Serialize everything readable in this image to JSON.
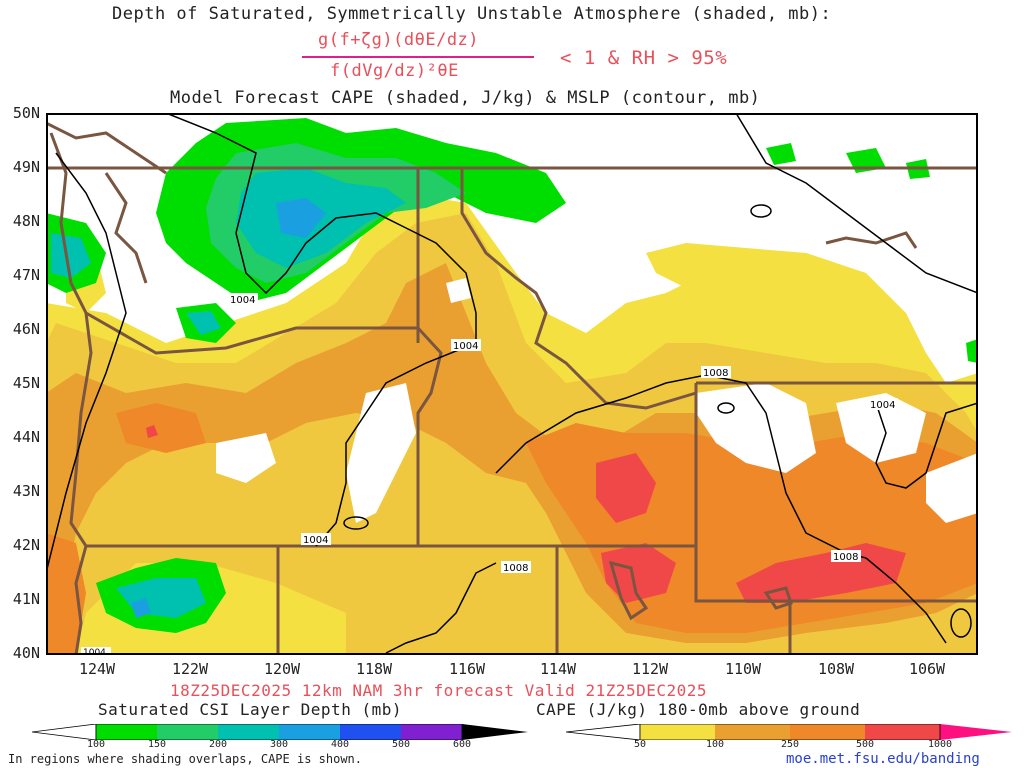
{
  "header": {
    "title": "Depth of Saturated, Symmetrically Unstable Atmosphere (shaded, mb):",
    "numerator": "g(f+ζg)(dθE/dz)",
    "denominator": "f(dVg/dz)²θE",
    "condition": "< 1 & RH > 95%",
    "subtitle": "Model Forecast CAPE (shaded, J/kg) & MSLP (contour, mb)"
  },
  "lat_labels": [
    "50N",
    "49N",
    "48N",
    "47N",
    "46N",
    "45N",
    "44N",
    "43N",
    "42N",
    "41N",
    "40N"
  ],
  "lon_labels": [
    "124W",
    "122W",
    "120W",
    "118W",
    "116W",
    "114W",
    "112W",
    "110W",
    "108W",
    "106W"
  ],
  "contour_labels": [
    "1004",
    "1004",
    "1004",
    "1008",
    "1004",
    "1008",
    "1008",
    "1004"
  ],
  "run_info": "18Z25DEC2025 12km NAM 3hr forecast Valid 21Z25DEC2025",
  "legend_left": {
    "title": "Saturated CSI Layer Depth (mb)",
    "ticks": [
      "100",
      "150",
      "200",
      "300",
      "400",
      "500",
      "600"
    ],
    "colors": [
      "#00dd00",
      "#22cc66",
      "#00c0b0",
      "#1aa0e0",
      "#2050f0",
      "#2020c0",
      "#8020d0",
      "#000000"
    ]
  },
  "legend_right": {
    "title": "CAPE (J/kg) 180-0mb above ground",
    "ticks": [
      "50",
      "100",
      "250",
      "500",
      "1000"
    ],
    "colors": [
      "#f4e040",
      "#f0c840",
      "#eaa030",
      "#ee8828",
      "#f04848",
      "#ff1080"
    ]
  },
  "footnote": "In regions where shading overlaps, CAPE is shown.",
  "credit": "moe.met.fsu.edu/banding",
  "colors": {
    "border": "#7a5540",
    "contour": "#000000",
    "accent": "#e8505a",
    "magenta": "#e0208a"
  }
}
